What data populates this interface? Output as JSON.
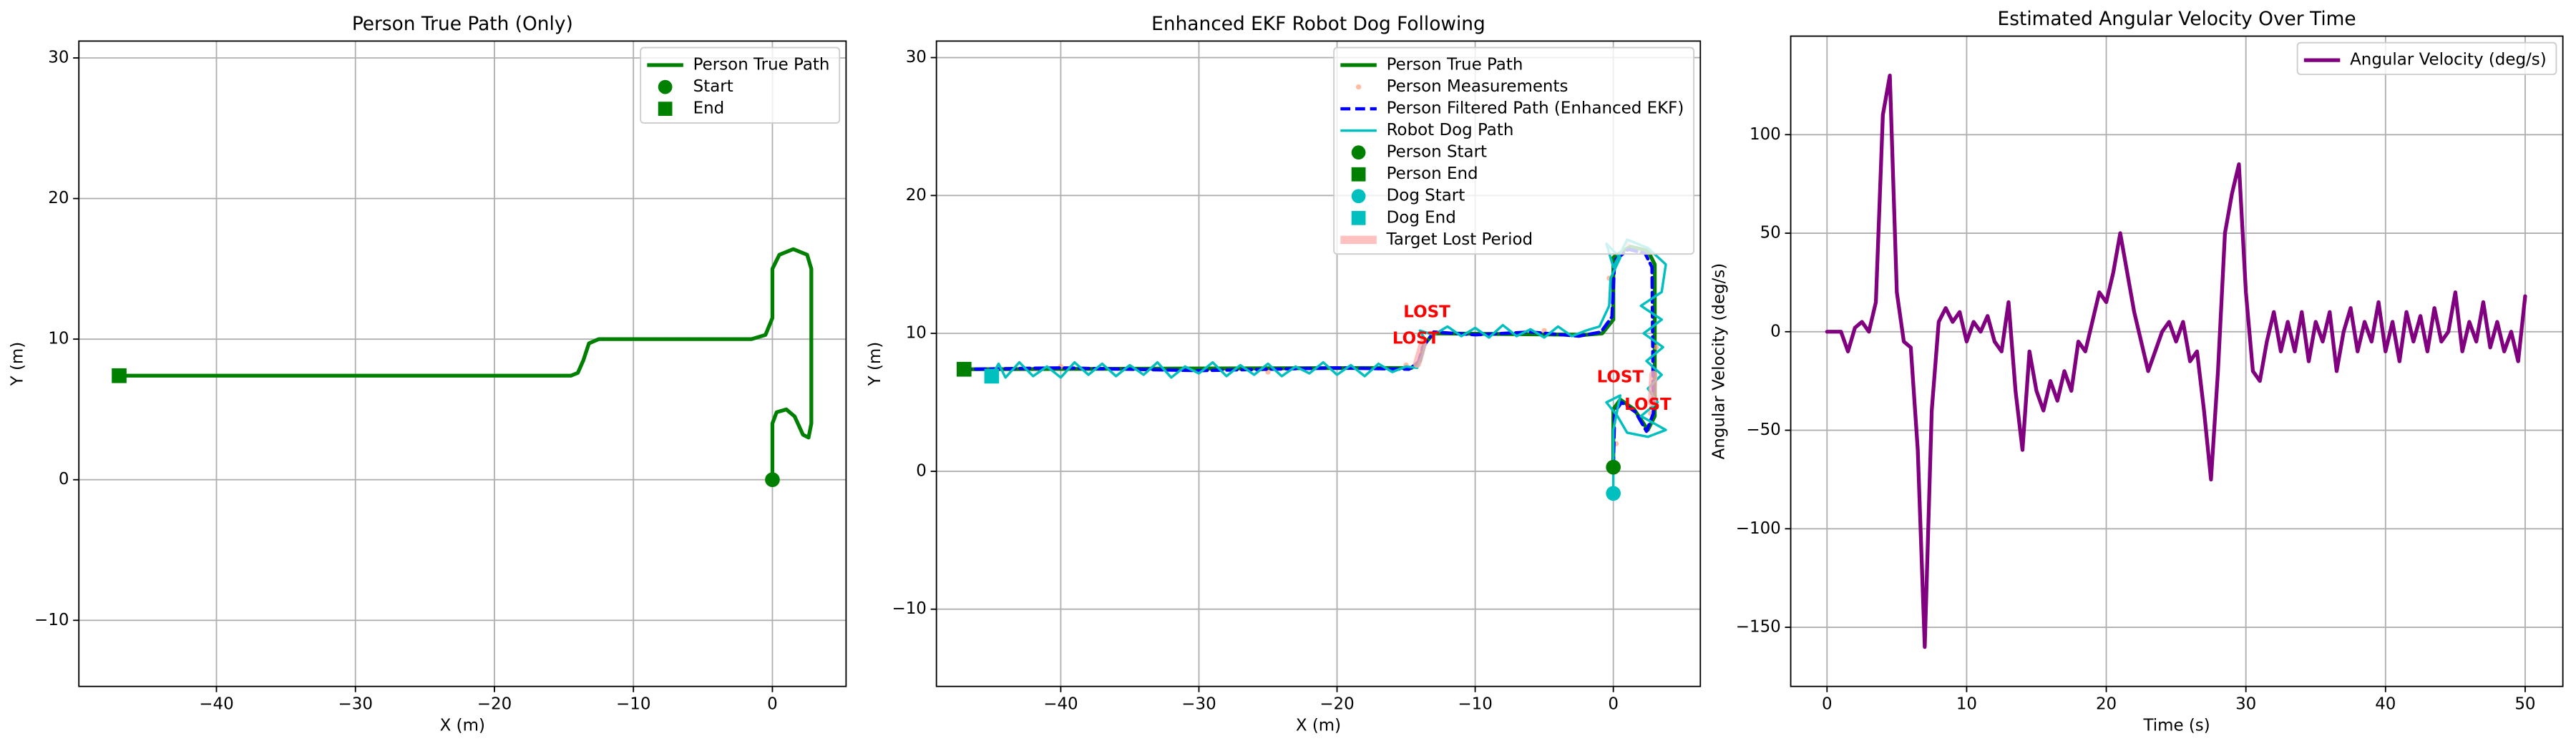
{
  "chart_data": [
    {
      "type": "line",
      "title": "Person True Path (Only)",
      "xlabel": "X (m)",
      "ylabel": "Y (m)",
      "xlim": [
        -49.9,
        5.3
      ],
      "ylim": [
        -14.7,
        31.2
      ],
      "xticks": [
        {
          "value": -40,
          "label": "−40"
        },
        {
          "value": -30,
          "label": "−30"
        },
        {
          "value": -20,
          "label": "−20"
        },
        {
          "value": -10,
          "label": "−10"
        },
        0
      ],
      "yticks": [
        {
          "value": -10,
          "label": "−10"
        },
        0,
        10,
        20,
        30
      ],
      "grid": true,
      "legend": "upper right",
      "series": [
        {
          "name": "Person True Path",
          "color": "#008000",
          "style": "solid",
          "x": [
            0,
            0,
            0.3,
            1,
            1.6,
            2.2,
            2.6,
            2.8,
            2.8,
            2.5,
            1.5,
            0.5,
            0,
            0,
            -0.5,
            -1.5,
            -12.5,
            -13.2,
            -13.6,
            -14,
            -14.5,
            -47
          ],
          "y": [
            0,
            4,
            4.8,
            5,
            4.5,
            3.2,
            3,
            4,
            15,
            16,
            16.4,
            16,
            15,
            11.5,
            10.3,
            10,
            10,
            9.7,
            8.5,
            7.6,
            7.4,
            7.4
          ]
        },
        {
          "name": "Start",
          "color": "#008000",
          "marker": "circle",
          "x": [
            0
          ],
          "y": [
            0
          ]
        },
        {
          "name": "End",
          "color": "#008000",
          "marker": "square",
          "x": [
            -47
          ],
          "y": [
            7.4
          ]
        }
      ]
    },
    {
      "type": "line",
      "title": "Enhanced EKF Robot Dog Following",
      "xlabel": "X (m)",
      "ylabel": "Y (m)",
      "xlim": [
        -49,
        6.3
      ],
      "ylim": [
        -15.6,
        31.2
      ],
      "xticks": [
        {
          "value": -40,
          "label": "−40"
        },
        {
          "value": -30,
          "label": "−30"
        },
        {
          "value": -20,
          "label": "−20"
        },
        {
          "value": -10,
          "label": "−10"
        },
        0
      ],
      "yticks": [
        {
          "value": -10,
          "label": "−10"
        },
        0,
        10,
        20,
        30
      ],
      "grid": true,
      "legend": "upper right",
      "series": [
        {
          "name": "Person True Path",
          "color": "#008000",
          "style": "solid",
          "x": [
            0,
            0,
            0.5,
            1.5,
            2.5,
            3,
            3,
            2.5,
            1.2,
            0,
            0,
            -0.8,
            -2,
            -13,
            -13.7,
            -14,
            -14.6,
            -47
          ],
          "y": [
            0.3,
            4.5,
            5.2,
            4.5,
            3,
            4,
            15,
            16,
            16.3,
            15.5,
            11,
            10,
            9.9,
            10,
            9.2,
            8,
            7.5,
            7.4
          ]
        },
        {
          "name": "Person Measurements",
          "color": "#ffa07a",
          "marker": "dot",
          "x": [
            -40,
            -25,
            -15,
            -13.8,
            -5,
            -0.3,
            1,
            3.1,
            2.7,
            0.2
          ],
          "y": [
            7.6,
            7.2,
            7.7,
            9.5,
            10.2,
            14,
            16.5,
            9,
            4.2,
            2
          ]
        },
        {
          "name": "Person Filtered Path (Enhanced EKF)",
          "color": "#0000ff",
          "style": "dashed",
          "x": [
            0,
            0.1,
            0.6,
            1.6,
            2.4,
            2.9,
            2.8,
            2.3,
            1.1,
            0.1,
            -0.1,
            -0.9,
            -2.5,
            -6,
            -10,
            -13,
            -13.8,
            -14.1,
            -14.8,
            -20,
            -30,
            -40,
            -47
          ],
          "y": [
            0.3,
            4.3,
            5.0,
            4.3,
            2.9,
            4.2,
            14.8,
            15.8,
            16.1,
            15.3,
            11.2,
            10.1,
            9.8,
            10.1,
            9.9,
            10.1,
            9.0,
            7.9,
            7.4,
            7.5,
            7.3,
            7.5,
            7.4
          ]
        },
        {
          "name": "Robot Dog Path",
          "color": "#00bfbf",
          "style": "thin",
          "x": [
            -45,
            -44.5,
            -44,
            -43,
            -42,
            -41,
            -40,
            -39,
            -38,
            -37,
            -36,
            -35,
            -34,
            -33,
            -32,
            -31,
            -30,
            -29,
            -28,
            -27,
            -26,
            -25,
            -24,
            -23,
            -22,
            -21,
            -20,
            -19,
            -18,
            -17,
            -16,
            -15,
            -14.2,
            -13.8,
            -13.6,
            -14,
            -13,
            -12,
            -11,
            -10,
            -9,
            -8,
            -7,
            -6,
            -5,
            -4,
            -3,
            -2,
            -1,
            -0.3,
            -0.2,
            0.5,
            -0.5,
            0,
            1,
            2.5,
            3.8,
            3.5,
            2,
            3.5,
            2.2,
            3.6,
            2.4,
            3.5,
            2.5,
            3.2,
            2,
            3.8,
            2.5,
            1,
            0.3,
            -0.5,
            0.5,
            0,
            0,
            0
          ],
          "y": [
            6.9,
            7.8,
            6.8,
            7.9,
            6.9,
            7.6,
            6.8,
            7.9,
            7.0,
            7.8,
            6.9,
            7.7,
            7.0,
            7.9,
            6.8,
            7.6,
            7.1,
            7.9,
            6.9,
            7.7,
            7.0,
            7.8,
            6.9,
            7.6,
            7.1,
            7.9,
            7.0,
            7.7,
            6.9,
            7.8,
            7.2,
            7.6,
            7.5,
            8.5,
            9.5,
            10.2,
            9.9,
            10.5,
            9.8,
            10.4,
            9.7,
            10.6,
            9.8,
            10.3,
            9.7,
            10.5,
            9.8,
            10.2,
            10.5,
            12,
            14,
            15.5,
            16.5,
            14.8,
            16.8,
            16.2,
            15,
            13,
            12,
            11,
            10,
            9,
            8,
            7,
            6,
            5,
            4,
            3,
            2.5,
            2.8,
            4,
            5,
            5.5,
            3,
            0,
            -1.6
          ]
        },
        {
          "name": "Person Start",
          "color": "#008000",
          "marker": "circle",
          "x": [
            0
          ],
          "y": [
            0.3
          ]
        },
        {
          "name": "Person End",
          "color": "#008000",
          "marker": "square",
          "x": [
            -47
          ],
          "y": [
            7.4
          ]
        },
        {
          "name": "Dog Start",
          "color": "#00bfbf",
          "marker": "circle",
          "x": [
            0
          ],
          "y": [
            -1.6
          ]
        },
        {
          "name": "Dog End",
          "color": "#00bfbf",
          "marker": "square",
          "x": [
            -45
          ],
          "y": [
            6.9
          ]
        },
        {
          "name": "Target Lost Period",
          "color": "#ffb0b0",
          "style": "band",
          "x": [
            -14.2,
            -13.8,
            null,
            2.8,
            2.9
          ],
          "y": [
            7.8,
            9.2,
            null,
            5,
            7
          ]
        }
      ],
      "annotations": [
        {
          "text": "LOST",
          "x": -13.5,
          "y": 11.5
        },
        {
          "text": "LOST",
          "x": -14.3,
          "y": 9.6
        },
        {
          "text": "LOST",
          "x": 0.5,
          "y": 6.8
        },
        {
          "text": "LOST",
          "x": 2.5,
          "y": 4.8
        }
      ]
    },
    {
      "type": "line",
      "title": "Estimated Angular Velocity Over Time",
      "xlabel": "Time (s)",
      "ylabel": "Angular Velocity (deg/s)",
      "xlim": [
        -2.6,
        52.7
      ],
      "ylim": [
        -180,
        150
      ],
      "xticks": [
        0,
        10,
        20,
        30,
        40,
        50
      ],
      "yticks": [
        {
          "value": -150,
          "label": "−150"
        },
        {
          "value": -100,
          "label": "−100"
        },
        {
          "value": -50,
          "label": "−50"
        },
        0,
        50,
        100
      ],
      "grid": true,
      "legend": "upper right",
      "series": [
        {
          "name": "Angular Velocity (deg/s)",
          "color": "#800080",
          "style": "solid",
          "x": [
            0,
            0.5,
            1,
            1.5,
            2,
            2.5,
            3,
            3.5,
            4,
            4.5,
            5,
            5.5,
            6,
            6.5,
            7,
            7.5,
            8,
            8.5,
            9,
            9.5,
            10,
            10.5,
            11,
            11.5,
            12,
            12.5,
            13,
            13.5,
            14,
            14.5,
            15,
            15.5,
            16,
            16.5,
            17,
            17.5,
            18,
            18.5,
            19,
            19.5,
            20,
            20.5,
            21,
            21.5,
            22,
            22.5,
            23,
            23.5,
            24,
            24.5,
            25,
            25.5,
            26,
            26.5,
            27,
            27.5,
            28,
            28.5,
            29,
            29.5,
            30,
            30.5,
            31,
            31.5,
            32,
            32.5,
            33,
            33.5,
            34,
            34.5,
            35,
            35.5,
            36,
            36.5,
            37,
            37.5,
            38,
            38.5,
            39,
            39.5,
            40,
            40.5,
            41,
            41.5,
            42,
            42.5,
            43,
            43.5,
            44,
            44.5,
            45,
            45.5,
            46,
            46.5,
            47,
            47.5,
            48,
            48.5,
            49,
            49.5,
            50
          ],
          "y": [
            0,
            0,
            0,
            -10,
            2,
            5,
            0,
            15,
            110,
            130,
            20,
            -5,
            -8,
            -60,
            -160,
            -40,
            5,
            12,
            5,
            10,
            -5,
            5,
            0,
            8,
            -5,
            -10,
            15,
            -30,
            -60,
            -10,
            -30,
            -40,
            -25,
            -35,
            -20,
            -30,
            -5,
            -10,
            5,
            20,
            15,
            30,
            50,
            30,
            10,
            -5,
            -20,
            -10,
            0,
            5,
            -5,
            5,
            -15,
            -10,
            -40,
            -75,
            -20,
            50,
            70,
            85,
            20,
            -20,
            -25,
            -5,
            10,
            -10,
            5,
            -10,
            10,
            -15,
            5,
            -5,
            10,
            -20,
            0,
            12,
            -10,
            5,
            -5,
            15,
            -10,
            5,
            -15,
            10,
            -5,
            8,
            -10,
            12,
            -5,
            0,
            20,
            -10,
            5,
            -5,
            15,
            -8,
            5,
            -10,
            0,
            -15,
            18
          ]
        }
      ]
    }
  ]
}
